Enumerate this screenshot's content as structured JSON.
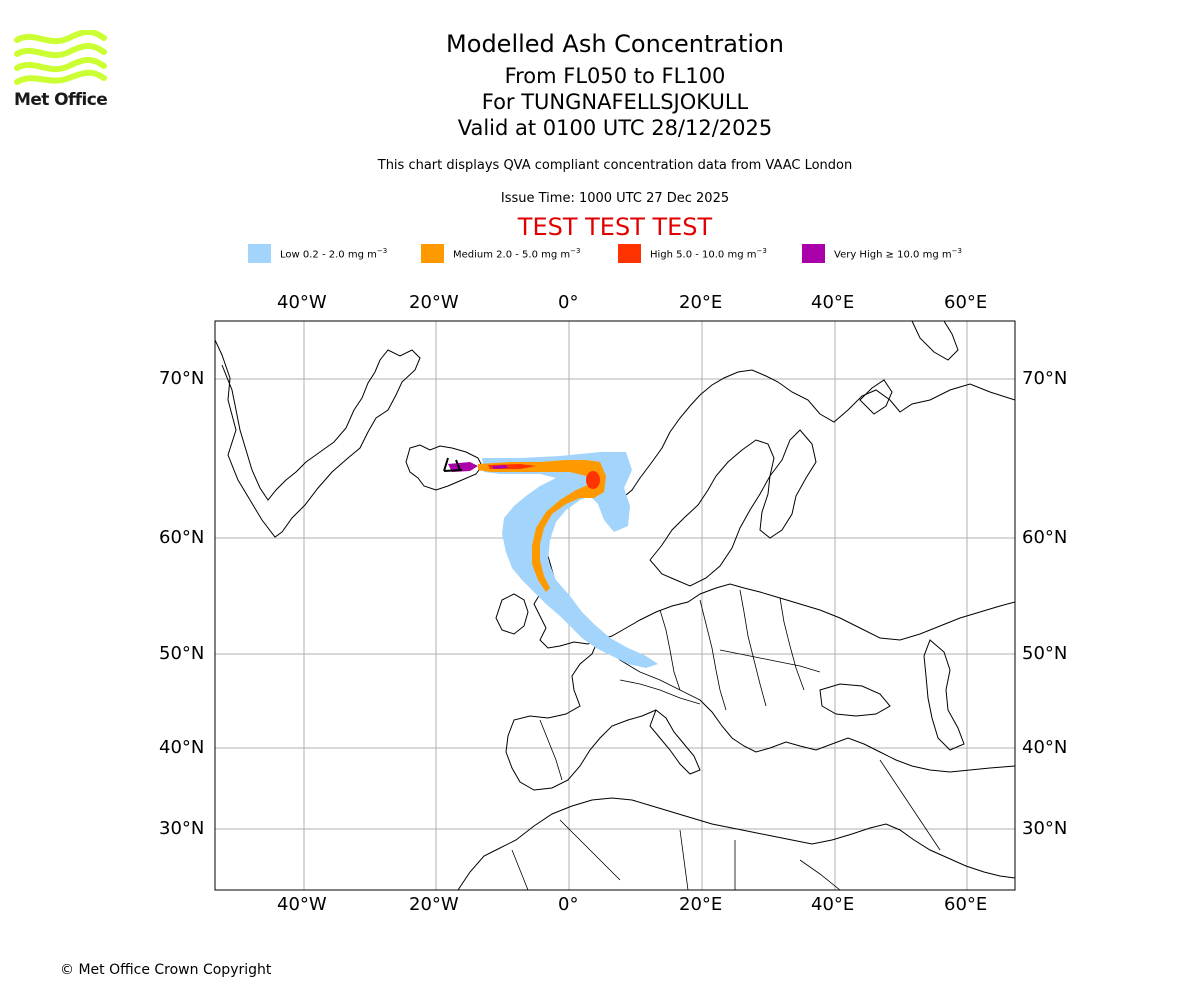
{
  "logo": {
    "text": "Met Office",
    "color": "#ccff33"
  },
  "title": {
    "line1": "Modelled Ash Concentration",
    "line2": "From FL050 to FL100",
    "line3": "For TUNGNAFELLSJOKULL",
    "line4": "Valid at 0100 UTC 28/12/2025",
    "subtitle": "This chart displays QVA compliant concentration data from VAAC London",
    "issue": "Issue Time: 1000 UTC 27 Dec 2025"
  },
  "banner": {
    "text": "TEST TEST TEST",
    "color": "#e00000"
  },
  "legend": [
    {
      "label": "Low 0.2 - 2.0 mg m",
      "color": "#a3d4fb"
    },
    {
      "label": "Medium 2.0 - 5.0 mg m",
      "color": "#ff9900"
    },
    {
      "label": "High 5.0 - 10.0 mg m",
      "color": "#ff3300"
    },
    {
      "label": "Very High ≥ 10.0 mg m",
      "color": "#aa00aa"
    }
  ],
  "legend_unit_sup": "−3",
  "map": {
    "lon_range": [
      -53,
      67
    ],
    "lat_range": [
      24,
      74
    ],
    "lon_ticks": [
      "40°W",
      "20°W",
      "0°",
      "20°E",
      "40°E",
      "60°E"
    ],
    "lat_ticks": [
      "70°N",
      "60°N",
      "50°N",
      "40°N",
      "30°N"
    ],
    "grid": true
  },
  "copyright": "© Met Office Crown Copyright"
}
